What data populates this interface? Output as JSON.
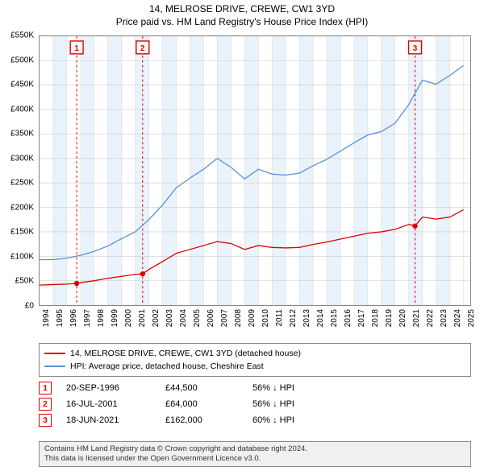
{
  "title_line1": "14, MELROSE DRIVE, CREWE, CW1 3YD",
  "title_line2": "Price paid vs. HM Land Registry's House Price Index (HPI)",
  "chart": {
    "type": "line",
    "background_color": "#ffffff",
    "plot_border_color": "#888888",
    "grid_color": "#cccccc",
    "band_color": "#eaf3fb",
    "x_min": 1994,
    "x_max": 2025.5,
    "x_ticks": [
      1994,
      1995,
      1996,
      1997,
      1998,
      1999,
      2000,
      2001,
      2002,
      2003,
      2004,
      2005,
      2006,
      2007,
      2008,
      2009,
      2010,
      2011,
      2012,
      2013,
      2014,
      2015,
      2016,
      2017,
      2018,
      2019,
      2020,
      2021,
      2022,
      2023,
      2024,
      2025
    ],
    "y_min": 0,
    "y_max": 550,
    "y_ticks": [
      0,
      50,
      100,
      150,
      200,
      250,
      300,
      350,
      400,
      450,
      500,
      550
    ],
    "y_tick_labels": [
      "£0",
      "£50K",
      "£100K",
      "£150K",
      "£200K",
      "£250K",
      "£300K",
      "£350K",
      "£400K",
      "£450K",
      "£500K",
      "£550K"
    ],
    "band_years": [
      [
        1995,
        1996
      ],
      [
        1997,
        1998
      ],
      [
        1999,
        2000
      ],
      [
        2001,
        2002
      ],
      [
        2003,
        2004
      ],
      [
        2005,
        2006
      ],
      [
        2007,
        2008
      ],
      [
        2009,
        2010
      ],
      [
        2011,
        2012
      ],
      [
        2013,
        2014
      ],
      [
        2015,
        2016
      ],
      [
        2017,
        2018
      ],
      [
        2019,
        2020
      ],
      [
        2021,
        2022
      ],
      [
        2023,
        2024
      ]
    ],
    "series": [
      {
        "name": "price_paid",
        "color": "#dd0000",
        "line_width": 1.3,
        "label": "14, MELROSE DRIVE, CREWE, CW1 3YD (detached house)",
        "points": [
          [
            1994,
            41
          ],
          [
            1995,
            42
          ],
          [
            1996,
            43
          ],
          [
            1996.72,
            44.5
          ],
          [
            1997,
            46
          ],
          [
            1998,
            50
          ],
          [
            1999,
            55
          ],
          [
            2000,
            59
          ],
          [
            2001,
            63
          ],
          [
            2001.54,
            64
          ],
          [
            2002,
            73
          ],
          [
            2003,
            89
          ],
          [
            2004,
            106
          ],
          [
            2005,
            114
          ],
          [
            2006,
            122
          ],
          [
            2007,
            130
          ],
          [
            2008,
            126
          ],
          [
            2009,
            114
          ],
          [
            2010,
            122
          ],
          [
            2011,
            118
          ],
          [
            2012,
            117
          ],
          [
            2013,
            118
          ],
          [
            2014,
            124
          ],
          [
            2015,
            129
          ],
          [
            2016,
            135
          ],
          [
            2017,
            141
          ],
          [
            2018,
            147
          ],
          [
            2019,
            150
          ],
          [
            2020,
            155
          ],
          [
            2021,
            165
          ],
          [
            2021.46,
            162
          ],
          [
            2022,
            180
          ],
          [
            2023,
            176
          ],
          [
            2024,
            180
          ],
          [
            2025,
            195
          ]
        ]
      },
      {
        "name": "hpi",
        "color": "#5b8fd6",
        "line_width": 1.3,
        "label": "HPI: Average price, detached house, Cheshire East",
        "points": [
          [
            1994,
            93
          ],
          [
            1995,
            93
          ],
          [
            1996,
            96
          ],
          [
            1997,
            102
          ],
          [
            1998,
            110
          ],
          [
            1999,
            121
          ],
          [
            2000,
            136
          ],
          [
            2001,
            150
          ],
          [
            2002,
            175
          ],
          [
            2003,
            205
          ],
          [
            2004,
            240
          ],
          [
            2005,
            260
          ],
          [
            2006,
            278
          ],
          [
            2007,
            300
          ],
          [
            2008,
            282
          ],
          [
            2009,
            258
          ],
          [
            2010,
            278
          ],
          [
            2011,
            268
          ],
          [
            2012,
            266
          ],
          [
            2013,
            270
          ],
          [
            2014,
            285
          ],
          [
            2015,
            298
          ],
          [
            2016,
            315
          ],
          [
            2017,
            332
          ],
          [
            2018,
            348
          ],
          [
            2019,
            355
          ],
          [
            2020,
            372
          ],
          [
            2021,
            410
          ],
          [
            2022,
            460
          ],
          [
            2023,
            452
          ],
          [
            2024,
            470
          ],
          [
            2025,
            490
          ]
        ]
      }
    ],
    "sale_markers": [
      {
        "n": "1",
        "year": 1996.72,
        "price": 44.5,
        "color": "#dd0000",
        "line_dash": "3,3"
      },
      {
        "n": "2",
        "year": 2001.54,
        "price": 64,
        "color": "#dd0000",
        "line_dash": "3,3"
      },
      {
        "n": "3",
        "year": 2021.46,
        "price": 162,
        "color": "#dd0000",
        "line_dash": "3,3"
      }
    ],
    "marker_dot_radius": 3.2,
    "marker_box_fill": "#ffffff",
    "marker_box_size": 16,
    "label_fontsize": 10,
    "title_fontsize": 12
  },
  "legend": {
    "rows": [
      {
        "color": "#dd0000",
        "label": "14, MELROSE DRIVE, CREWE, CW1 3YD (detached house)"
      },
      {
        "color": "#5b8fd6",
        "label": "HPI: Average price, detached house, Cheshire East"
      }
    ]
  },
  "sales": [
    {
      "n": "1",
      "date": "20-SEP-1996",
      "price": "£44,500",
      "hpi": "56% ↓ HPI",
      "color": "#dd0000"
    },
    {
      "n": "2",
      "date": "16-JUL-2001",
      "price": "£64,000",
      "hpi": "56% ↓ HPI",
      "color": "#dd0000"
    },
    {
      "n": "3",
      "date": "18-JUN-2021",
      "price": "£162,000",
      "hpi": "60% ↓ HPI",
      "color": "#dd0000"
    }
  ],
  "footer": {
    "line1": "Contains HM Land Registry data © Crown copyright and database right 2024.",
    "line2": "This data is licensed under the Open Government Licence v3.0.",
    "background_color": "#f0f0f0",
    "border_color": "#888888",
    "text_color": "#333333"
  }
}
